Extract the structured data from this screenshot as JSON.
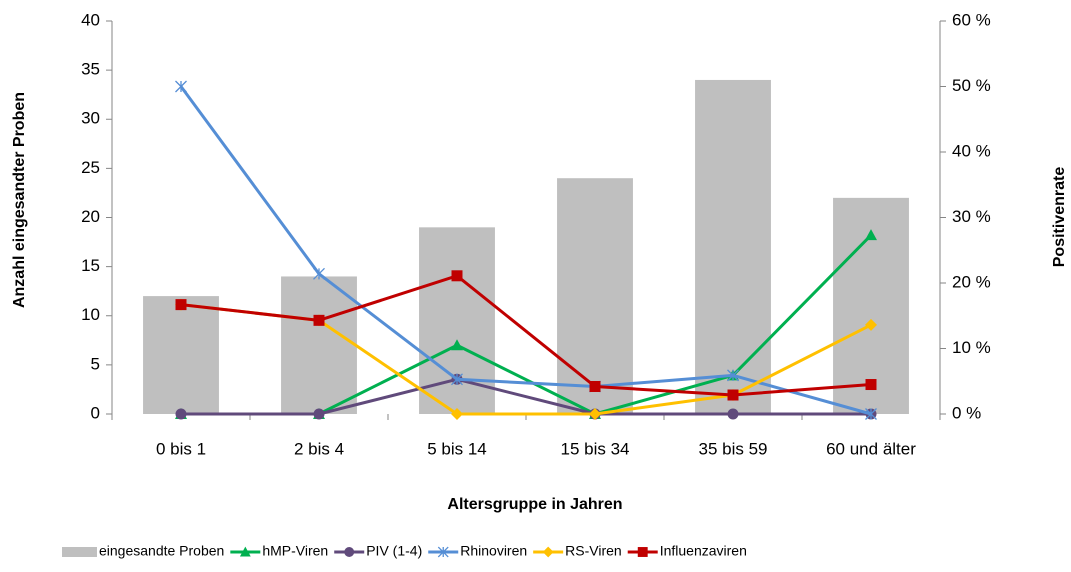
{
  "chart_data": {
    "type": "bar-line",
    "x_label": "Altersgruppe in Jahren",
    "y_label": "Anzahl eingesandter Proben",
    "y2_label": "Positivenrate",
    "categories": [
      "0 bis 1",
      "2 bis 4",
      "5 bis 14",
      "15 bis 34",
      "35 bis 59",
      "60 und älter"
    ],
    "ylim": [
      0,
      40
    ],
    "yticks": [
      0,
      5,
      10,
      15,
      20,
      25,
      30,
      35,
      40
    ],
    "y2lim": [
      0,
      60
    ],
    "y2ticks": [
      {
        "value": 0,
        "label": "0 %"
      },
      {
        "value": 10,
        "label": "10 %"
      },
      {
        "value": 20,
        "label": "20 %"
      },
      {
        "value": 30,
        "label": "30 %"
      },
      {
        "value": 40,
        "label": "40 %"
      },
      {
        "value": 50,
        "label": "50 %"
      },
      {
        "value": 60,
        "label": "60 %"
      }
    ],
    "series": [
      {
        "name": "eingesandte Proben",
        "type": "bar",
        "color": "#bfbfbf",
        "values": [
          12,
          14,
          19,
          24,
          34,
          22
        ]
      },
      {
        "name": "hMP-Viren",
        "type": "line",
        "marker": "triangle",
        "axis": "y2",
        "color": "#00b050",
        "values": [
          0,
          0,
          10.5,
          0,
          5.9,
          27.3
        ]
      },
      {
        "name": "PIV (1-4)",
        "type": "line",
        "marker": "circle",
        "axis": "y2",
        "color": "#604a7b",
        "values": [
          0,
          0,
          5.3,
          0,
          0,
          0
        ]
      },
      {
        "name": "Rhinoviren",
        "type": "line",
        "marker": "asterisk",
        "axis": "y2",
        "color": "#558ed5",
        "values": [
          50,
          21.4,
          5.3,
          4.2,
          5.9,
          0
        ]
      },
      {
        "name": "RS-Viren",
        "type": "line",
        "marker": "diamond",
        "axis": "y2",
        "color": "#ffc000",
        "values": [
          16.7,
          14.3,
          0,
          0,
          2.9,
          13.6
        ]
      },
      {
        "name": "Influenzaviren",
        "type": "line",
        "marker": "square",
        "axis": "y2",
        "color": "#c00000",
        "values": [
          16.7,
          14.3,
          21.1,
          4.2,
          2.9,
          4.5
        ]
      }
    ]
  }
}
